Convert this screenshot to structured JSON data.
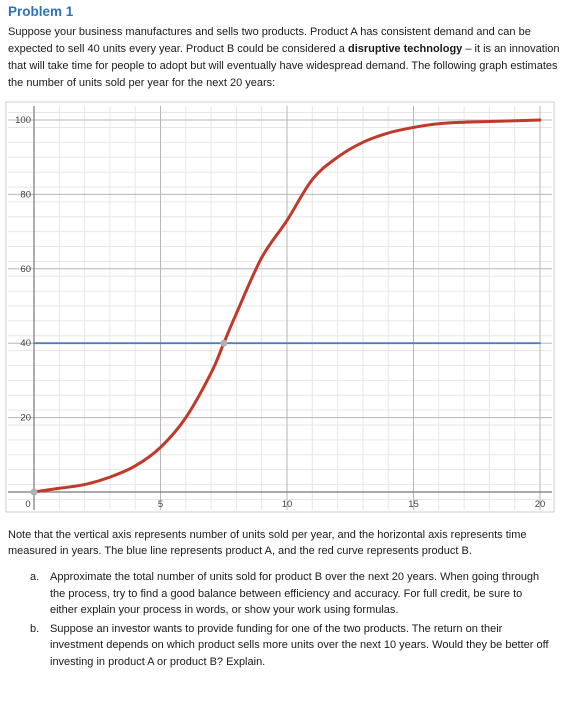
{
  "problem": {
    "title": "Problem 1",
    "intro_part1": "Suppose your business manufactures and sells two products.  Product A has consistent demand and can be expected to sell 40 units every year.  Product B could be considered a ",
    "intro_bold": "disruptive technology",
    "intro_part2": " – it is an innovation that will take time for people to adopt but will eventually have widespread demand.  The following graph estimates the number of units sold per year for the next 20 years:",
    "note": "Note that the vertical axis represents number of units sold per year, and the horizontal axis represents time measured in years.  The blue line represents product A, and the red curve represents product B.",
    "questions": [
      {
        "label": "a.",
        "text": "Approximate the total number of units sold for product B over the next 20 years.  When going through the process, try to find a good balance between efficiency and accuracy.  For full credit, be sure to either explain your process in words, or show your work using formulas."
      },
      {
        "label": "b.",
        "text": "Suppose an investor wants to provide funding for one of the two products.  The return on their investment depends on which product sells more units over the next 10 years.  Would they be better off investing in product A or product B?  Explain."
      }
    ]
  },
  "chart_data": {
    "type": "line",
    "title": "",
    "xlabel": "",
    "ylabel": "",
    "xlim": [
      0,
      20
    ],
    "ylim": [
      0,
      100
    ],
    "x_ticks": [
      0,
      5,
      10,
      15,
      20
    ],
    "y_ticks": [
      20,
      40,
      60,
      80,
      100
    ],
    "grid": true,
    "series": [
      {
        "color": "#4a7fc1",
        "points": [
          [
            0,
            40
          ],
          [
            20,
            40
          ]
        ]
      },
      {
        "color": "#c0392b",
        "points": [
          [
            0,
            0
          ],
          [
            1,
            1
          ],
          [
            2,
            2
          ],
          [
            3,
            4
          ],
          [
            4,
            7
          ],
          [
            5,
            12
          ],
          [
            6,
            20
          ],
          [
            7,
            32
          ],
          [
            7.5,
            40
          ],
          [
            8,
            48
          ],
          [
            9,
            63
          ],
          [
            10,
            73
          ],
          [
            11,
            84
          ],
          [
            12,
            90
          ],
          [
            13,
            94
          ],
          [
            14,
            96.5
          ],
          [
            15,
            98
          ],
          [
            16,
            99
          ],
          [
            17,
            99.4
          ],
          [
            18,
            99.6
          ],
          [
            19,
            99.8
          ],
          [
            20,
            100
          ]
        ]
      }
    ],
    "highlight_points": [
      [
        0,
        0
      ],
      [
        7.5,
        40
      ]
    ]
  },
  "colors": {
    "title": "#2e74b5",
    "grid_major": "#b7b7b7",
    "grid_minor": "#e6e6e6",
    "axis": "#777777"
  }
}
